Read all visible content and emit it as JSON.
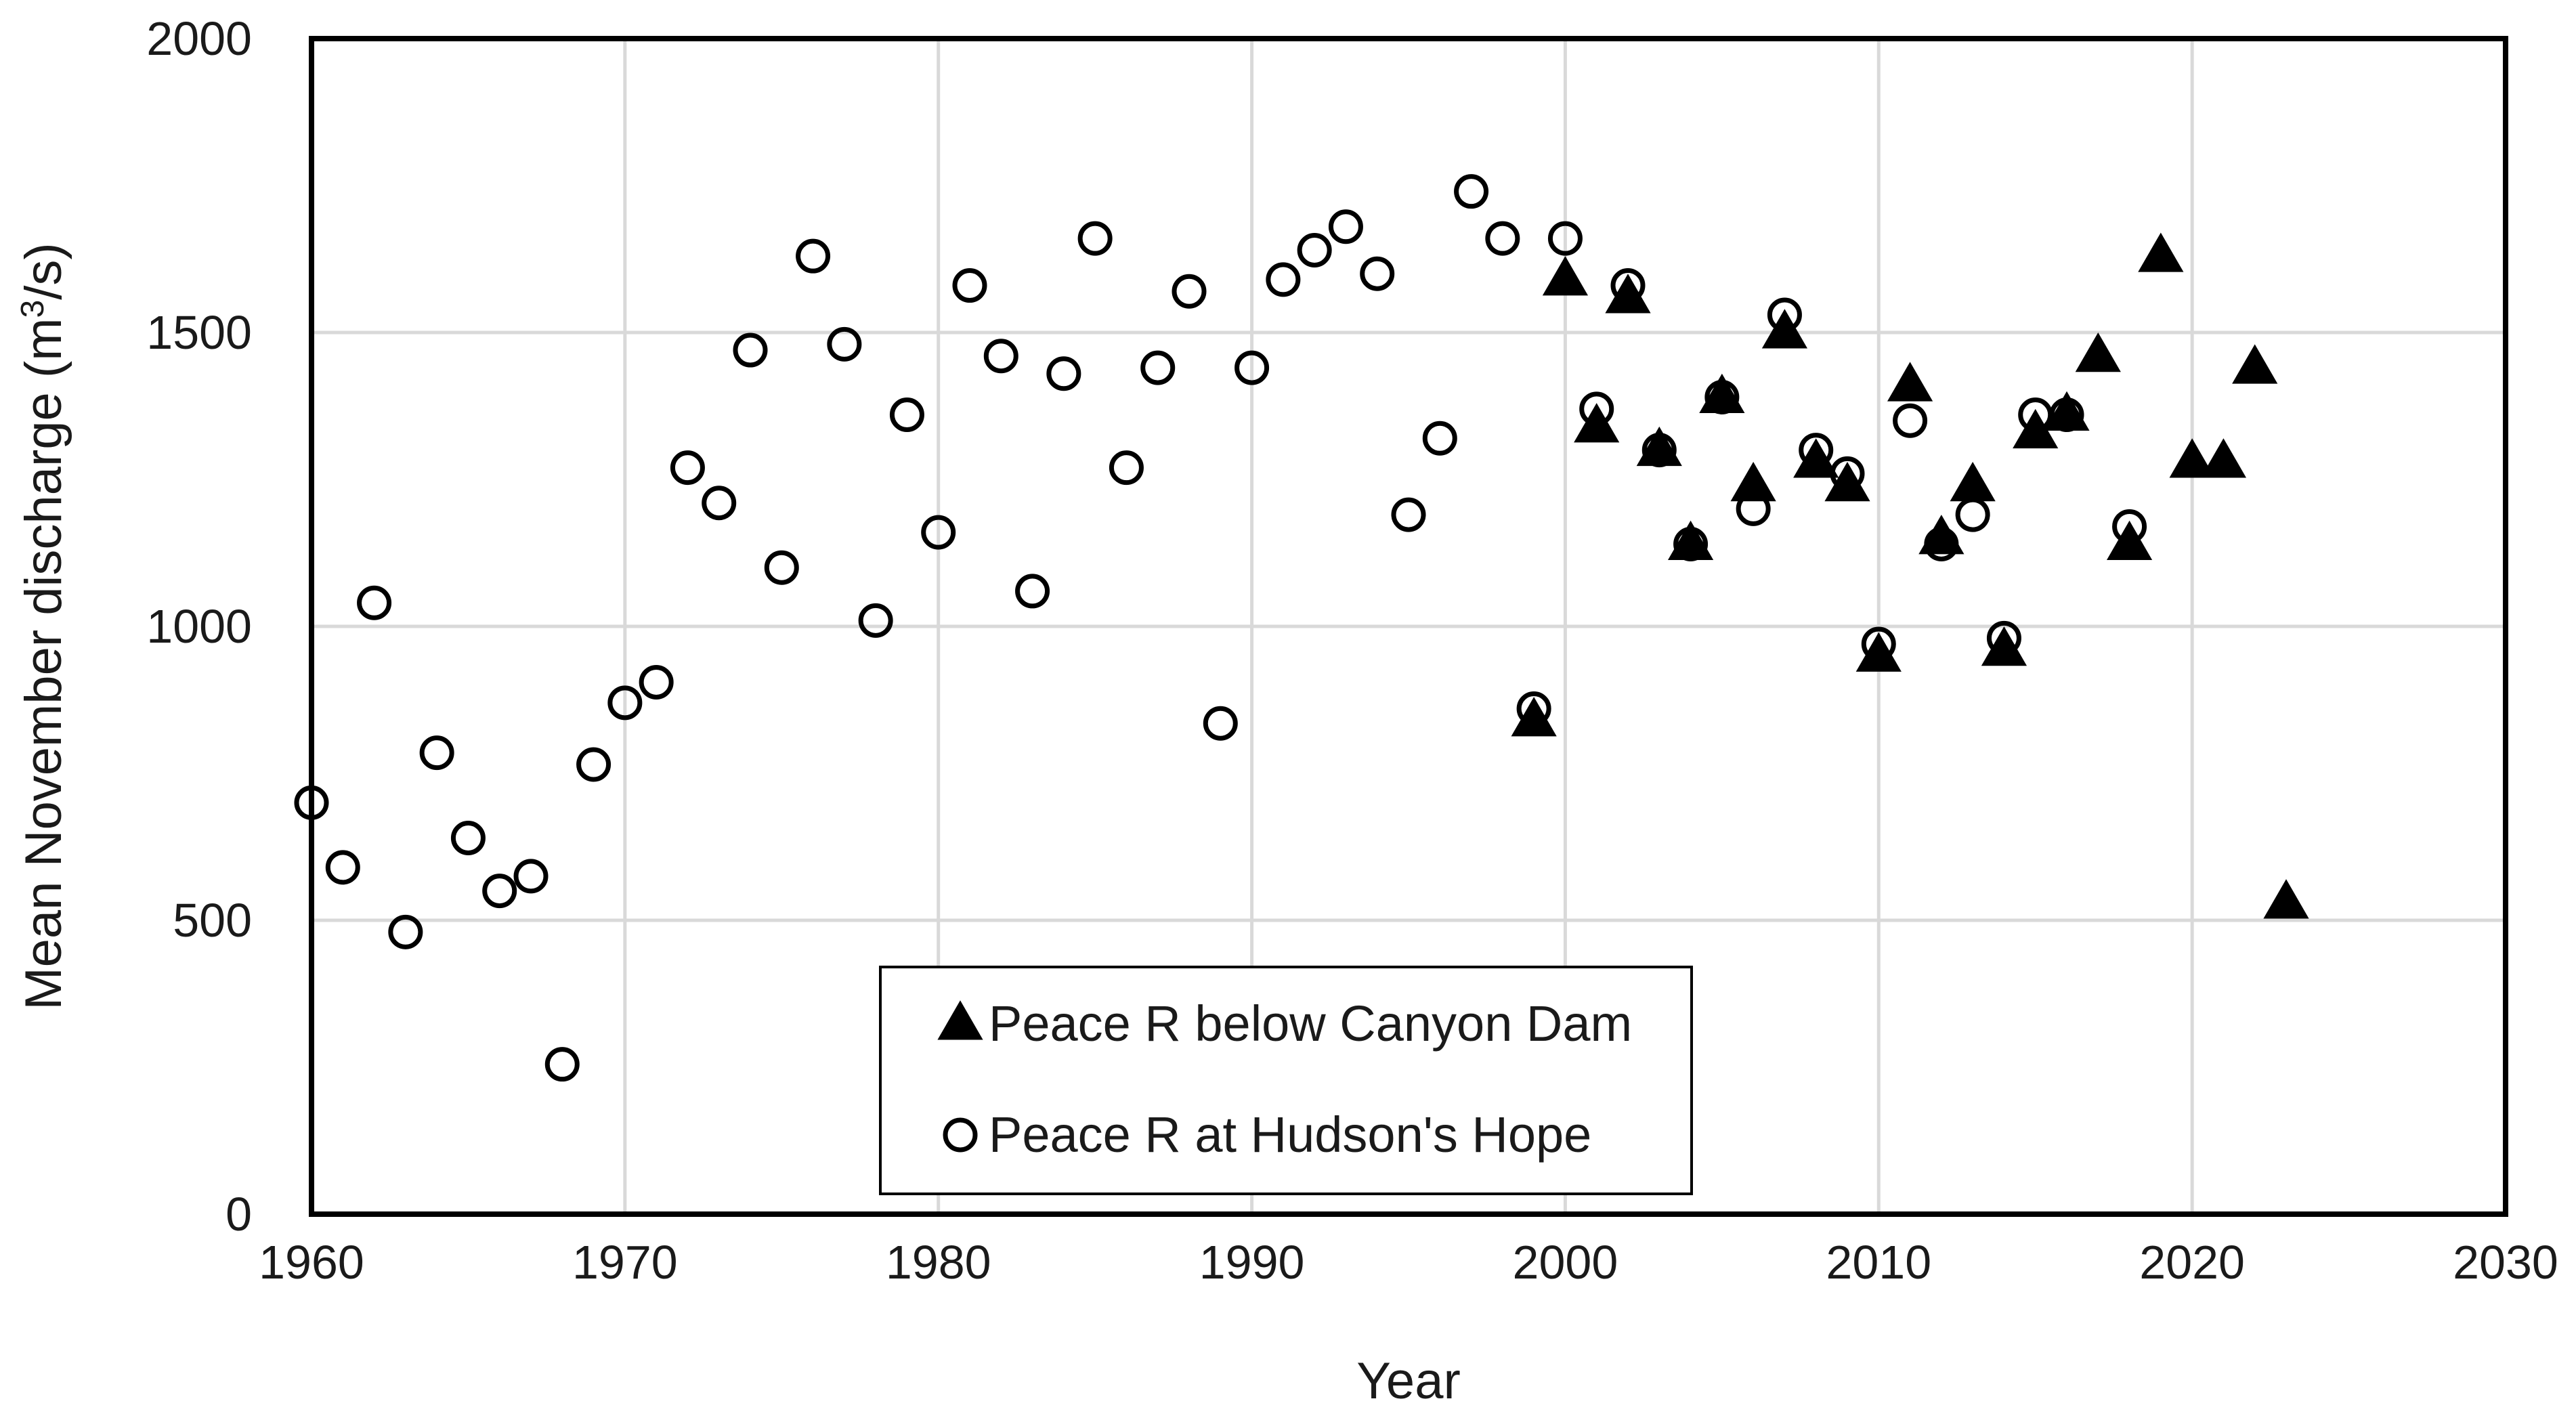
{
  "chart_data": {
    "type": "scatter",
    "title": "",
    "xlabel": "Year",
    "ylabel": "Mean November discharge  (m³/s)",
    "ylabel_parts": {
      "before": "Mean November discharge  (m",
      "sup": "3",
      "after": "/s)"
    },
    "xlim": [
      1960,
      2030
    ],
    "ylim": [
      0,
      2000
    ],
    "xticks": [
      "1960",
      "1970",
      "1980",
      "1990",
      "2000",
      "2010",
      "2020",
      "2030"
    ],
    "yticks": [
      "0",
      "500",
      "1000",
      "1500",
      "2000"
    ],
    "grid": true,
    "legend_position": "bottom-center",
    "colors": {
      "marker": "#000000",
      "grid": "#d9d9d9",
      "background": "#ffffff"
    },
    "series": [
      {
        "name": "Peace R below Canyon Dam",
        "marker": "filled-triangle",
        "points": [
          [
            1999,
            840
          ],
          [
            2000,
            1590
          ],
          [
            2001,
            1340
          ],
          [
            2002,
            1560
          ],
          [
            2003,
            1300
          ],
          [
            2004,
            1140
          ],
          [
            2005,
            1390
          ],
          [
            2006,
            1240
          ],
          [
            2007,
            1500
          ],
          [
            2008,
            1280
          ],
          [
            2009,
            1240
          ],
          [
            2010,
            950
          ],
          [
            2011,
            1410
          ],
          [
            2012,
            1150
          ],
          [
            2013,
            1240
          ],
          [
            2014,
            960
          ],
          [
            2015,
            1330
          ],
          [
            2016,
            1360
          ],
          [
            2017,
            1460
          ],
          [
            2018,
            1140
          ],
          [
            2019,
            1630
          ],
          [
            2020,
            1280
          ],
          [
            2021,
            1280
          ],
          [
            2022,
            1440
          ],
          [
            2023,
            530
          ]
        ]
      },
      {
        "name": "Peace R at Hudson's Hope",
        "marker": "open-circle",
        "points": [
          [
            1960,
            700
          ],
          [
            1961,
            590
          ],
          [
            1962,
            1040
          ],
          [
            1963,
            480
          ],
          [
            1964,
            785
          ],
          [
            1965,
            640
          ],
          [
            1966,
            550
          ],
          [
            1967,
            575
          ],
          [
            1968,
            255
          ],
          [
            1969,
            765
          ],
          [
            1970,
            870
          ],
          [
            1971,
            905
          ],
          [
            1972,
            1270
          ],
          [
            1973,
            1210
          ],
          [
            1974,
            1470
          ],
          [
            1975,
            1100
          ],
          [
            1976,
            1630
          ],
          [
            1977,
            1480
          ],
          [
            1978,
            1010
          ],
          [
            1979,
            1360
          ],
          [
            1980,
            1160
          ],
          [
            1981,
            1580
          ],
          [
            1982,
            1460
          ],
          [
            1983,
            1060
          ],
          [
            1984,
            1430
          ],
          [
            1985,
            1660
          ],
          [
            1986,
            1270
          ],
          [
            1987,
            1440
          ],
          [
            1988,
            1570
          ],
          [
            1989,
            835
          ],
          [
            1990,
            1440
          ],
          [
            1991,
            1590
          ],
          [
            1992,
            1640
          ],
          [
            1993,
            1680
          ],
          [
            1994,
            1600
          ],
          [
            1995,
            1190
          ],
          [
            1996,
            1320
          ],
          [
            1997,
            1740
          ],
          [
            1998,
            1660
          ],
          [
            1999,
            860
          ],
          [
            2000,
            1660
          ],
          [
            2001,
            1370
          ],
          [
            2002,
            1580
          ],
          [
            2003,
            1300
          ],
          [
            2004,
            1140
          ],
          [
            2005,
            1390
          ],
          [
            2006,
            1200
          ],
          [
            2007,
            1530
          ],
          [
            2008,
            1300
          ],
          [
            2009,
            1260
          ],
          [
            2010,
            970
          ],
          [
            2011,
            1350
          ],
          [
            2012,
            1140
          ],
          [
            2013,
            1190
          ],
          [
            2014,
            980
          ],
          [
            2015,
            1360
          ],
          [
            2016,
            1360
          ],
          [
            2018,
            1170
          ]
        ]
      }
    ]
  }
}
